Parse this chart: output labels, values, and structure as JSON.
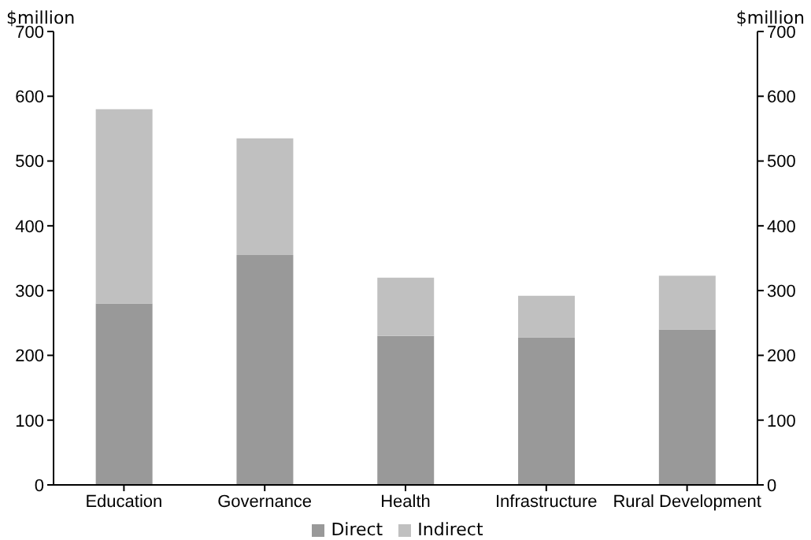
{
  "chart_data": {
    "type": "bar",
    "stacked": true,
    "categories": [
      "Education",
      "Governance",
      "Health",
      "Infrastructure",
      "Rural Development"
    ],
    "series": [
      {
        "name": "Direct",
        "color": "#999999",
        "values": [
          280,
          355,
          230,
          228,
          240
        ]
      },
      {
        "name": "Indirect",
        "color": "#c0c0c0",
        "values": [
          300,
          180,
          90,
          64,
          83
        ]
      }
    ],
    "ylabel": "$million",
    "y2label": "$million",
    "ylim": [
      0,
      700
    ],
    "yticks": [
      0,
      100,
      200,
      300,
      400,
      500,
      600,
      700
    ],
    "y2lim": [
      0,
      700
    ],
    "y2ticks": [
      0,
      100,
      200,
      300,
      400,
      500,
      600,
      700
    ],
    "grid": false,
    "legend": "bottom"
  }
}
